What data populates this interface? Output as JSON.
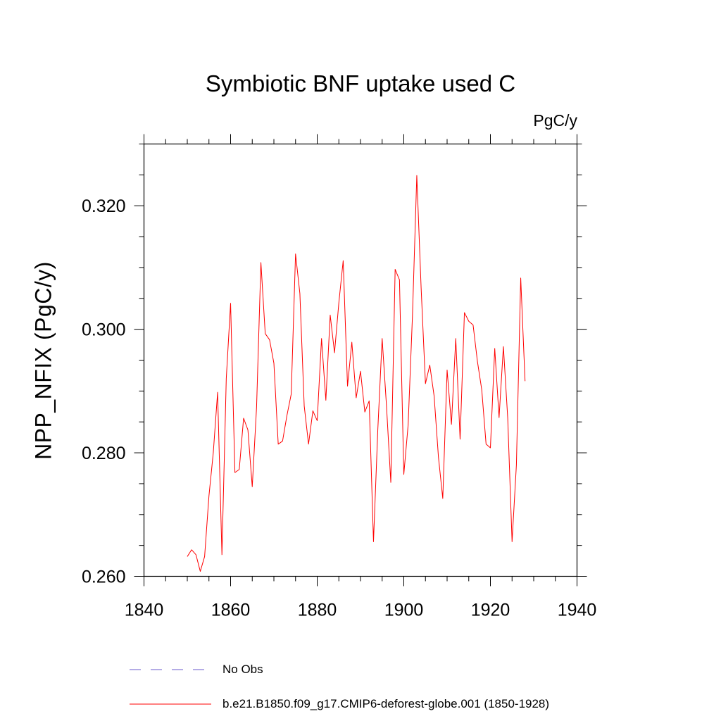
{
  "chart_data": {
    "type": "line",
    "title": "Symbiotic BNF uptake used C",
    "units_label": "PgC/y",
    "ylabel": "NPP_NFIX  (PgC/y)",
    "xlim": [
      1840,
      1940
    ],
    "ylim": [
      0.26,
      0.33
    ],
    "x_ticks": [
      1840,
      1860,
      1880,
      1900,
      1920,
      1940
    ],
    "x_tick_labels": [
      "1840",
      "1860",
      "1880",
      "1900",
      "1920",
      "1940"
    ],
    "y_ticks": [
      0.26,
      0.28,
      0.3,
      0.32
    ],
    "y_tick_labels": [
      "0.260",
      "0.280",
      "0.300",
      "0.320"
    ],
    "legend": [
      {
        "name": "No Obs",
        "color": "#6a5acd",
        "style": "dashed"
      },
      {
        "name": "b.e21.B1850.f09_g17.CMIP6-deforest-globe.001 (1850-1928)",
        "color": "#ff0000",
        "style": "solid"
      }
    ],
    "series": [
      {
        "name": "b.e21.B1850.f09_g17.CMIP6-deforest-globe.001 (1850-1928)",
        "color": "#ff0000",
        "x": [
          1850,
          1851,
          1852,
          1853,
          1854,
          1855,
          1856,
          1857,
          1858,
          1859,
          1860,
          1861,
          1862,
          1863,
          1864,
          1865,
          1866,
          1867,
          1868,
          1869,
          1870,
          1871,
          1872,
          1873,
          1874,
          1875,
          1876,
          1877,
          1878,
          1879,
          1880,
          1881,
          1882,
          1883,
          1884,
          1885,
          1886,
          1887,
          1888,
          1889,
          1890,
          1891,
          1892,
          1893,
          1894,
          1895,
          1896,
          1897,
          1898,
          1899,
          1900,
          1901,
          1902,
          1903,
          1904,
          1905,
          1906,
          1907,
          1908,
          1909,
          1910,
          1911,
          1912,
          1913,
          1914,
          1915,
          1916,
          1917,
          1918,
          1919,
          1920,
          1921,
          1922,
          1923,
          1924,
          1925,
          1926,
          1927,
          1928
        ],
        "y": [
          0.2632,
          0.2643,
          0.2635,
          0.2608,
          0.2632,
          0.273,
          0.28,
          0.2898,
          0.2635,
          0.292,
          0.3042,
          0.2768,
          0.2773,
          0.2856,
          0.2837,
          0.2745,
          0.2874,
          0.3108,
          0.2993,
          0.2983,
          0.2945,
          0.2814,
          0.2819,
          0.286,
          0.2895,
          0.3122,
          0.3058,
          0.2876,
          0.2814,
          0.2868,
          0.2852,
          0.2985,
          0.2885,
          0.3023,
          0.2962,
          0.3043,
          0.3111,
          0.2908,
          0.2979,
          0.2889,
          0.2932,
          0.2866,
          0.2884,
          0.2656,
          0.2838,
          0.2985,
          0.2876,
          0.2752,
          0.3097,
          0.308,
          0.2765,
          0.2845,
          0.3022,
          0.3249,
          0.3067,
          0.2912,
          0.2942,
          0.2892,
          0.2793,
          0.2726,
          0.2934,
          0.2846,
          0.2985,
          0.2822,
          0.3027,
          0.3013,
          0.3007,
          0.2948,
          0.2902,
          0.2814,
          0.2808,
          0.2969,
          0.2857,
          0.2972,
          0.2856,
          0.2656,
          0.278,
          0.3083,
          0.2916
        ]
      }
    ]
  }
}
